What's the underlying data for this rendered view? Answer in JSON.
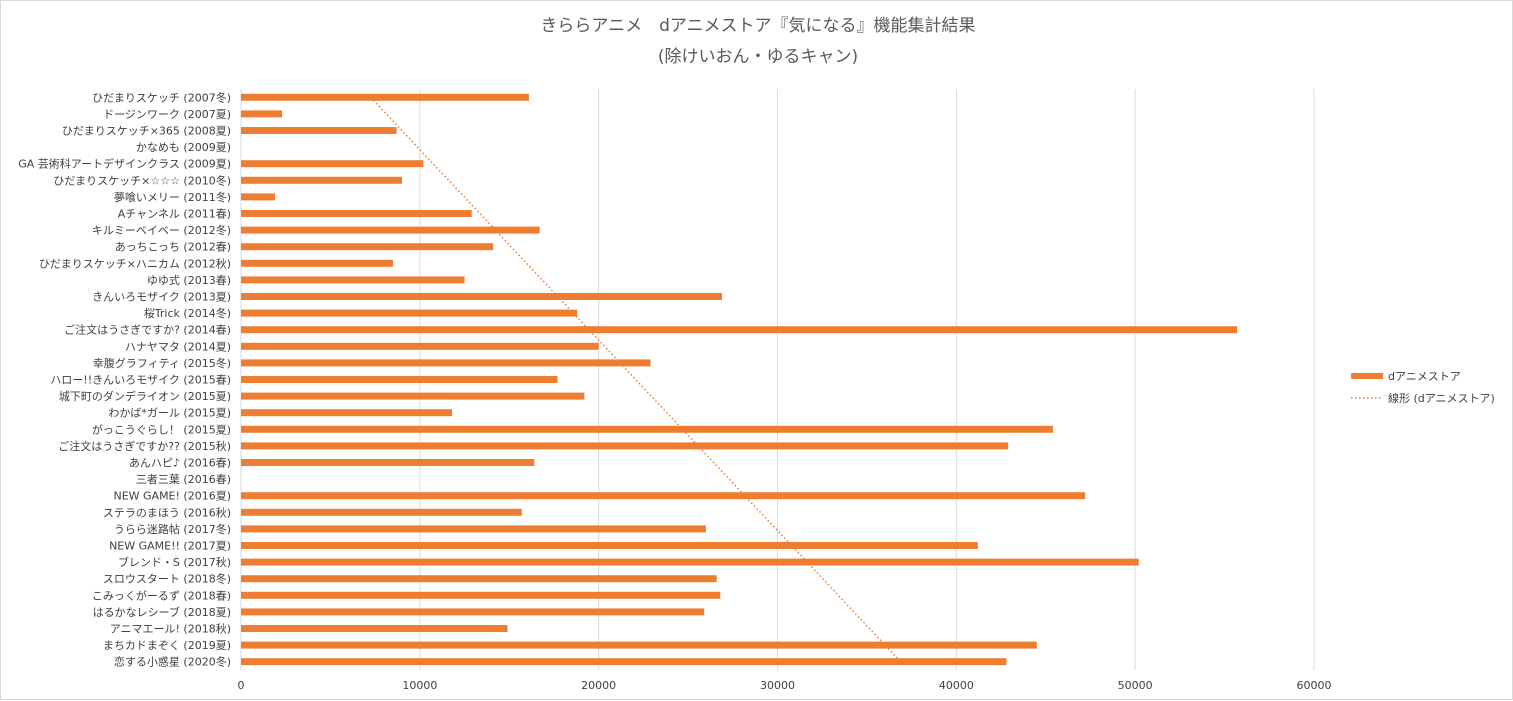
{
  "chart_data": {
    "type": "bar",
    "orientation": "horizontal",
    "title": "きららアニメ　dアニメストア『気になる』機能集計結果",
    "subtitle": "(除けいおん・ゆるキャン)",
    "categories": [
      "ひだまりスケッチ (2007冬)",
      "ドージンワーク (2007夏)",
      "ひだまりスケッチ×365 (2008夏)",
      "かなめも (2009夏)",
      "GA 芸術科アートデザインクラス (2009夏)",
      "ひだまりスケッチ×☆☆☆ (2010冬)",
      "夢喰いメリー (2011冬)",
      "Aチャンネル (2011春)",
      "キルミーベイベー (2012冬)",
      "あっちこっち (2012春)",
      "ひだまりスケッチ×ハニカム (2012秋)",
      "ゆゆ式 (2013春)",
      "きんいろモザイク (2013夏)",
      "桜Trick (2014冬)",
      "ご注文はうさぎですか? (2014春)",
      "ハナヤマタ (2014夏)",
      "幸腹グラフィティ (2015冬)",
      "ハロー!!きんいろモザイク (2015春)",
      "城下町のダンデライオン (2015夏)",
      "わかば*ガール (2015夏)",
      "がっこうぐらし！ (2015夏)",
      "ご注文はうさぎですか?? (2015秋)",
      "あんハピ♪ (2016春)",
      "三者三葉 (2016春)",
      "NEW GAME! (2016夏)",
      "ステラのまほう (2016秋)",
      "うらら迷路帖 (2017冬)",
      "NEW GAME!! (2017夏)",
      "ブレンド・S (2017秋)",
      "スロウスタート (2018冬)",
      "こみっくがーるず (2018春)",
      "はるかなレシーブ (2018夏)",
      "アニマエール! (2018秋)",
      "まちカドまぞく (2019夏)",
      "恋する小惑星 (2020冬)"
    ],
    "series": [
      {
        "name": "dアニメストア",
        "color": "#ED7D31",
        "values": [
          16100,
          2300,
          8700,
          0,
          10200,
          9000,
          1900,
          12900,
          16700,
          14100,
          8500,
          12500,
          26900,
          18800,
          55700,
          20000,
          22900,
          17700,
          19200,
          11800,
          45400,
          42900,
          16400,
          0,
          47200,
          15700,
          26000,
          41200,
          50200,
          26600,
          26800,
          25900,
          14900,
          44500,
          42800
        ]
      }
    ],
    "trendline": {
      "name": "線形 (dアニメストア)",
      "type": "linear",
      "color": "#ED7D31",
      "style": "dotted"
    },
    "xlim": [
      0,
      60000
    ],
    "xticks": [
      "0",
      "10000",
      "20000",
      "30000",
      "40000",
      "50000",
      "60000"
    ],
    "grid": true,
    "legend_position": "right"
  }
}
